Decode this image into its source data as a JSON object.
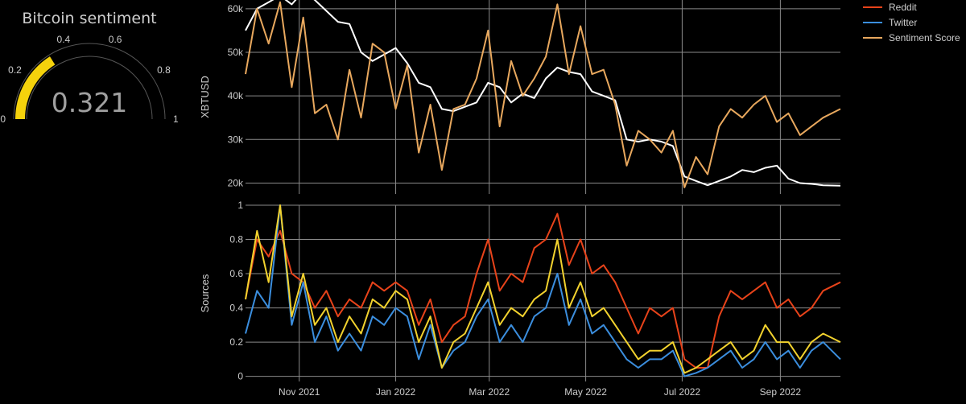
{
  "colors": {
    "background": "#000000",
    "grid": "#8a8a8a",
    "price": "#ffffff",
    "reddit": "#e8431a",
    "twitter": "#3b8ede",
    "sentiment_score": "#e8a85e",
    "sources_sentiment": "#f2d22e",
    "gauge_fill": "#f5d20c",
    "gauge_outline": "#555555"
  },
  "gauge": {
    "title": "Bitcoin sentiment",
    "value": 0.321,
    "value_text": "0.321",
    "min": 0,
    "max": 1,
    "ticks": [
      0,
      0.2,
      0.4,
      0.6,
      0.8,
      1
    ],
    "tick_labels": [
      "0",
      "0.2",
      "0.4",
      "0.6",
      "0.8",
      "1"
    ]
  },
  "legend": {
    "placement": "top-right",
    "items": [
      {
        "label": "Reddit",
        "color": "#e8431a"
      },
      {
        "label": "Twitter",
        "color": "#3b8ede"
      },
      {
        "label": "Sentiment Score",
        "color": "#e8a85e"
      }
    ]
  },
  "chart_data": [
    {
      "type": "line",
      "title": "",
      "xlabel": "",
      "ylabel": "XBTUSD",
      "ylim": [
        17500,
        62000
      ],
      "yticks": [
        20000,
        30000,
        40000,
        50000,
        60000
      ],
      "ytick_labels": [
        "20k",
        "30k",
        "40k",
        "50k",
        "60k"
      ],
      "xlim": [
        2021.74,
        2022.77
      ],
      "xticks": [
        2021.833,
        2022.0,
        2022.162,
        2022.329,
        2022.496,
        2022.666
      ],
      "grid": true,
      "series": [
        {
          "name": "XBTUSD price",
          "x": [
            2021.74,
            2021.76,
            2021.78,
            2021.8,
            2021.82,
            2021.84,
            2021.86,
            2021.88,
            2021.9,
            2021.92,
            2021.94,
            2021.96,
            2021.98,
            2022.0,
            2022.02,
            2022.04,
            2022.06,
            2022.08,
            2022.1,
            2022.12,
            2022.14,
            2022.16,
            2022.18,
            2022.2,
            2022.22,
            2022.24,
            2022.26,
            2022.28,
            2022.3,
            2022.32,
            2022.34,
            2022.36,
            2022.38,
            2022.4,
            2022.42,
            2022.44,
            2022.46,
            2022.48,
            2022.5,
            2022.52,
            2022.54,
            2022.56,
            2022.58,
            2022.6,
            2022.62,
            2022.64,
            2022.66,
            2022.68,
            2022.7,
            2022.72,
            2022.74,
            2022.77
          ],
          "values": [
            55000,
            60000,
            61500,
            63000,
            61000,
            64000,
            62000,
            59500,
            57000,
            56500,
            50000,
            48000,
            49500,
            51000,
            47500,
            43000,
            42000,
            37000,
            36500,
            37500,
            38500,
            43000,
            42000,
            38500,
            40500,
            39500,
            44000,
            46500,
            45500,
            45000,
            41000,
            40000,
            39000,
            30000,
            29500,
            30000,
            29500,
            28500,
            21500,
            20500,
            19500,
            20500,
            21500,
            23000,
            22500,
            23500,
            24000,
            21000,
            20000,
            19800,
            19500,
            19400
          ]
        },
        {
          "name": "Sentiment Score",
          "x": [
            2021.74,
            2021.76,
            2021.78,
            2021.8,
            2021.82,
            2021.84,
            2021.86,
            2021.88,
            2021.9,
            2021.92,
            2021.94,
            2021.96,
            2021.98,
            2022.0,
            2022.02,
            2022.04,
            2022.06,
            2022.08,
            2022.1,
            2022.12,
            2022.14,
            2022.16,
            2022.18,
            2022.2,
            2022.22,
            2022.24,
            2022.26,
            2022.28,
            2022.3,
            2022.32,
            2022.34,
            2022.36,
            2022.38,
            2022.4,
            2022.42,
            2022.44,
            2022.46,
            2022.48,
            2022.5,
            2022.52,
            2022.54,
            2022.56,
            2022.58,
            2022.6,
            2022.62,
            2022.64,
            2022.66,
            2022.68,
            2022.7,
            2022.72,
            2022.74,
            2022.77
          ],
          "values": [
            45000,
            60000,
            52000,
            61500,
            42000,
            58000,
            36000,
            38000,
            30000,
            46000,
            35000,
            52000,
            50000,
            37000,
            47000,
            27000,
            38000,
            23000,
            37000,
            38000,
            44000,
            55000,
            33000,
            48000,
            40000,
            44000,
            49000,
            61000,
            45000,
            56000,
            45000,
            46000,
            38000,
            24000,
            32000,
            30000,
            27000,
            32000,
            19000,
            26000,
            22000,
            33000,
            37000,
            35000,
            38000,
            40000,
            34000,
            36000,
            31000,
            33000,
            35000,
            37000
          ]
        }
      ]
    },
    {
      "type": "line",
      "title": "",
      "xlabel": "",
      "ylabel": "Sources",
      "ylim": [
        -0.03,
        1.0
      ],
      "yticks": [
        0,
        0.2,
        0.4,
        0.6,
        0.8,
        1
      ],
      "ytick_labels": [
        "0",
        "0.2",
        "0.4",
        "0.6",
        "0.8",
        "1"
      ],
      "xlim": [
        2021.74,
        2022.77
      ],
      "xticks": [
        2021.833,
        2022.0,
        2022.162,
        2022.329,
        2022.496,
        2022.666
      ],
      "xtick_labels": [
        "Nov 2021",
        "Jan 2022",
        "Mar 2022",
        "May 2022",
        "Jul 2022",
        "Sep 2022"
      ],
      "grid": true,
      "series": [
        {
          "name": "Reddit",
          "x": [
            2021.74,
            2021.76,
            2021.78,
            2021.8,
            2021.82,
            2021.84,
            2021.86,
            2021.88,
            2021.9,
            2021.92,
            2021.94,
            2021.96,
            2021.98,
            2022.0,
            2022.02,
            2022.04,
            2022.06,
            2022.08,
            2022.1,
            2022.12,
            2022.14,
            2022.16,
            2022.18,
            2022.2,
            2022.22,
            2022.24,
            2022.26,
            2022.28,
            2022.3,
            2022.32,
            2022.34,
            2022.36,
            2022.38,
            2022.4,
            2022.42,
            2022.44,
            2022.46,
            2022.48,
            2022.5,
            2022.52,
            2022.54,
            2022.56,
            2022.58,
            2022.6,
            2022.62,
            2022.64,
            2022.66,
            2022.68,
            2022.7,
            2022.72,
            2022.74,
            2022.77
          ],
          "values": [
            0.45,
            0.8,
            0.7,
            0.85,
            0.6,
            0.55,
            0.4,
            0.5,
            0.35,
            0.45,
            0.4,
            0.55,
            0.5,
            0.55,
            0.5,
            0.3,
            0.45,
            0.2,
            0.3,
            0.35,
            0.6,
            0.8,
            0.5,
            0.6,
            0.55,
            0.75,
            0.8,
            0.95,
            0.65,
            0.8,
            0.6,
            0.65,
            0.55,
            0.4,
            0.25,
            0.4,
            0.35,
            0.4,
            0.1,
            0.05,
            0.05,
            0.35,
            0.5,
            0.45,
            0.5,
            0.55,
            0.4,
            0.45,
            0.35,
            0.4,
            0.5,
            0.55
          ]
        },
        {
          "name": "Twitter",
          "x": [
            2021.74,
            2021.76,
            2021.78,
            2021.8,
            2021.82,
            2021.84,
            2021.86,
            2021.88,
            2021.9,
            2021.92,
            2021.94,
            2021.96,
            2021.98,
            2022.0,
            2022.02,
            2022.04,
            2022.06,
            2022.08,
            2022.1,
            2022.12,
            2022.14,
            2022.16,
            2022.18,
            2022.2,
            2022.22,
            2022.24,
            2022.26,
            2022.28,
            2022.3,
            2022.32,
            2022.34,
            2022.36,
            2022.38,
            2022.4,
            2022.42,
            2022.44,
            2022.46,
            2022.48,
            2022.5,
            2022.52,
            2022.54,
            2022.56,
            2022.58,
            2022.6,
            2022.62,
            2022.64,
            2022.66,
            2022.68,
            2022.7,
            2022.72,
            2022.74,
            2022.77
          ],
          "values": [
            0.25,
            0.5,
            0.4,
            1.0,
            0.3,
            0.55,
            0.2,
            0.35,
            0.15,
            0.25,
            0.15,
            0.35,
            0.3,
            0.4,
            0.35,
            0.1,
            0.3,
            0.05,
            0.15,
            0.2,
            0.35,
            0.45,
            0.2,
            0.3,
            0.2,
            0.35,
            0.4,
            0.6,
            0.3,
            0.45,
            0.25,
            0.3,
            0.2,
            0.1,
            0.05,
            0.1,
            0.1,
            0.15,
            0.0,
            0.02,
            0.05,
            0.1,
            0.15,
            0.05,
            0.1,
            0.2,
            0.1,
            0.15,
            0.05,
            0.15,
            0.2,
            0.1
          ]
        },
        {
          "name": "Sentiment Score",
          "x": [
            2021.74,
            2021.76,
            2021.78,
            2021.8,
            2021.82,
            2021.84,
            2021.86,
            2021.88,
            2021.9,
            2021.92,
            2021.94,
            2021.96,
            2021.98,
            2022.0,
            2022.02,
            2022.04,
            2022.06,
            2022.08,
            2022.1,
            2022.12,
            2022.14,
            2022.16,
            2022.18,
            2022.2,
            2022.22,
            2022.24,
            2022.26,
            2022.28,
            2022.3,
            2022.32,
            2022.34,
            2022.36,
            2022.38,
            2022.4,
            2022.42,
            2022.44,
            2022.46,
            2022.48,
            2022.5,
            2022.52,
            2022.54,
            2022.56,
            2022.58,
            2022.6,
            2022.62,
            2022.64,
            2022.66,
            2022.68,
            2022.7,
            2022.72,
            2022.74,
            2022.77
          ],
          "values": [
            0.45,
            0.85,
            0.55,
            1.0,
            0.35,
            0.6,
            0.3,
            0.4,
            0.2,
            0.35,
            0.25,
            0.45,
            0.4,
            0.5,
            0.45,
            0.2,
            0.35,
            0.05,
            0.2,
            0.25,
            0.4,
            0.55,
            0.3,
            0.4,
            0.35,
            0.45,
            0.5,
            0.8,
            0.4,
            0.55,
            0.35,
            0.4,
            0.3,
            0.2,
            0.1,
            0.15,
            0.15,
            0.2,
            0.02,
            0.05,
            0.1,
            0.15,
            0.2,
            0.1,
            0.15,
            0.3,
            0.2,
            0.2,
            0.1,
            0.2,
            0.25,
            0.2
          ]
        }
      ]
    }
  ]
}
